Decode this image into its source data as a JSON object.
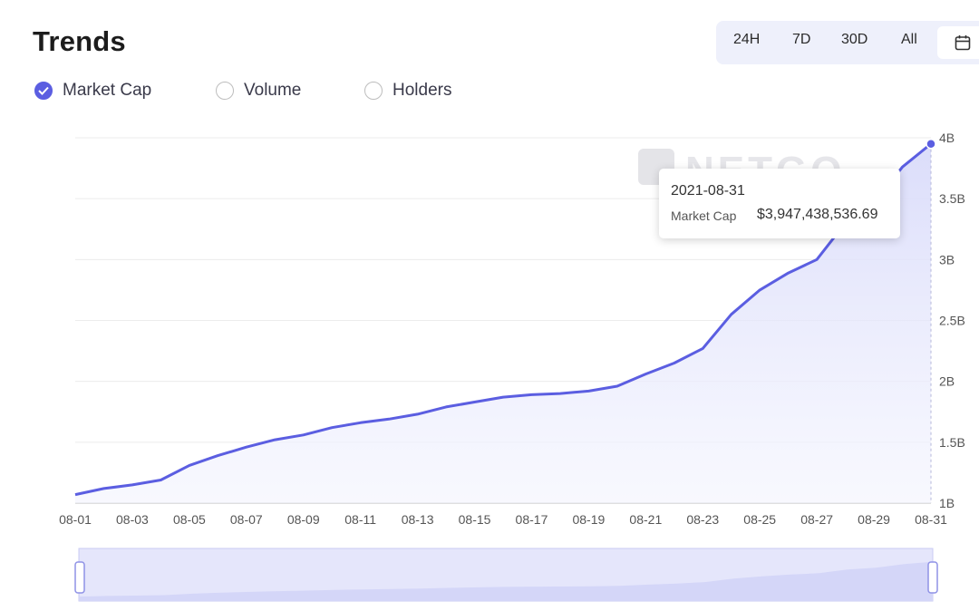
{
  "header": {
    "title": "Trends"
  },
  "range_buttons": [
    {
      "label": "24H"
    },
    {
      "label": "7D"
    },
    {
      "label": "30D"
    },
    {
      "label": "All"
    }
  ],
  "calendar": {
    "icon": "calendar-icon"
  },
  "metrics": [
    {
      "label": "Market Cap",
      "checked": true
    },
    {
      "label": "Volume",
      "checked": false
    },
    {
      "label": "Holders",
      "checked": false
    }
  ],
  "tooltip": {
    "date": "2021-08-31",
    "label": "Market Cap",
    "value": "$3,947,438,536.69"
  },
  "watermark": "NETGO",
  "colors": {
    "accent": "#5b5ee1",
    "area": "#e3e4fb",
    "range_bg": "#eef0fb"
  },
  "chart_data": {
    "type": "area",
    "series": [
      {
        "name": "Market Cap",
        "x": [
          "08-01",
          "08-02",
          "08-03",
          "08-04",
          "08-05",
          "08-06",
          "08-07",
          "08-08",
          "08-09",
          "08-10",
          "08-11",
          "08-12",
          "08-13",
          "08-14",
          "08-15",
          "08-16",
          "08-17",
          "08-18",
          "08-19",
          "08-20",
          "08-21",
          "08-22",
          "08-23",
          "08-24",
          "08-25",
          "08-26",
          "08-27",
          "08-28",
          "08-29",
          "08-30",
          "08-31"
        ],
        "values": [
          1.07,
          1.12,
          1.15,
          1.19,
          1.31,
          1.39,
          1.46,
          1.52,
          1.56,
          1.62,
          1.66,
          1.69,
          1.73,
          1.79,
          1.83,
          1.87,
          1.89,
          1.9,
          1.92,
          1.96,
          2.06,
          2.15,
          2.27,
          2.55,
          2.75,
          2.89,
          3.0,
          3.3,
          3.46,
          3.76,
          3.95
        ]
      }
    ],
    "x_tick_labels": [
      "08-01",
      "08-03",
      "08-05",
      "08-07",
      "08-09",
      "08-11",
      "08-13",
      "08-15",
      "08-17",
      "08-19",
      "08-21",
      "08-23",
      "08-25",
      "08-27",
      "08-29",
      "08-31"
    ],
    "y_tick_labels": [
      "1B",
      "1.5B",
      "2B",
      "2.5B",
      "3B",
      "3.5B",
      "4B"
    ],
    "y_ticks": [
      1,
      1.5,
      2,
      2.5,
      3,
      3.5,
      4
    ],
    "ylim": [
      1,
      4
    ],
    "grid": true,
    "y_axis_position": "right",
    "brush_range": [
      0,
      1
    ]
  }
}
